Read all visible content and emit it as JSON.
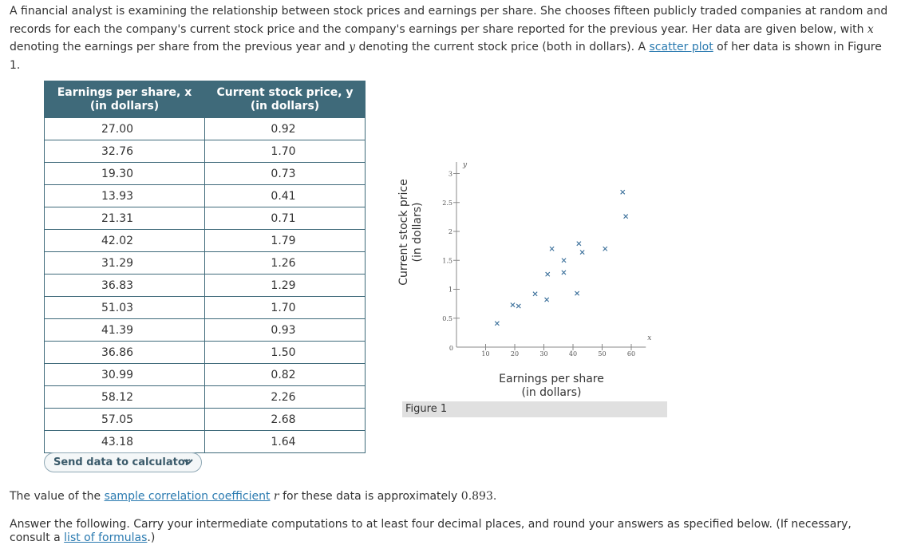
{
  "intro": {
    "part1": "A financial analyst is examining the relationship between stock prices and earnings per share. She chooses fifteen publicly traded companies at random and records for each the company's current stock price and the company's earnings per share reported for the previous year. Her data are given below, with ",
    "var_x": "x",
    "part2": " denoting the earnings per share from the previous year and ",
    "var_y": "y",
    "part3": " denoting the current stock price (both in dollars). A ",
    "link_scatter": "scatter plot",
    "part4": " of her data is shown in Figure 1."
  },
  "table": {
    "header_x_line1": "Earnings per share, x",
    "header_x_line2": "(in dollars)",
    "header_y_line1": "Current stock price, y",
    "header_y_line2": "(in dollars)",
    "rows": [
      [
        "27.00",
        "0.92"
      ],
      [
        "32.76",
        "1.70"
      ],
      [
        "19.30",
        "0.73"
      ],
      [
        "13.93",
        "0.41"
      ],
      [
        "21.31",
        "0.71"
      ],
      [
        "42.02",
        "1.79"
      ],
      [
        "31.29",
        "1.26"
      ],
      [
        "36.83",
        "1.29"
      ],
      [
        "51.03",
        "1.70"
      ],
      [
        "41.39",
        "0.93"
      ],
      [
        "36.86",
        "1.50"
      ],
      [
        "30.99",
        "0.82"
      ],
      [
        "58.12",
        "2.26"
      ],
      [
        "57.05",
        "2.68"
      ],
      [
        "43.18",
        "1.64"
      ]
    ]
  },
  "send_button": {
    "label": "Send data to calculator",
    "icon": "chevron-down-icon"
  },
  "figure": {
    "caption": "Figure 1",
    "ylabel_line1": "Current stock price",
    "ylabel_line2": "(in dollars)",
    "xlabel_line1": "Earnings per share",
    "xlabel_line2": "(in dollars)"
  },
  "chart_data": {
    "type": "scatter",
    "title": "",
    "xlabel": "Earnings per share (in dollars)",
    "ylabel": "Current stock price (in dollars)",
    "x_axis_symbol": "x",
    "y_axis_symbol": "y",
    "xlim": [
      0,
      65
    ],
    "ylim": [
      0,
      3.2
    ],
    "x_ticks": [
      10,
      20,
      30,
      40,
      50,
      60
    ],
    "x_tick_labels": [
      "10",
      "20",
      "30",
      "40",
      "50",
      "60"
    ],
    "y_ticks": [
      0.5,
      1,
      1.5,
      2,
      2.5,
      3
    ],
    "y_tick_labels": [
      "0.5",
      "1",
      "1.5",
      "2",
      "2.5",
      "3"
    ],
    "origin_label": "0",
    "marker": "x",
    "marker_color": "#3a6f9a",
    "grid": false,
    "points": [
      {
        "x": 27.0,
        "y": 0.92
      },
      {
        "x": 32.76,
        "y": 1.7
      },
      {
        "x": 19.3,
        "y": 0.73
      },
      {
        "x": 13.93,
        "y": 0.41
      },
      {
        "x": 21.31,
        "y": 0.71
      },
      {
        "x": 42.02,
        "y": 1.79
      },
      {
        "x": 31.29,
        "y": 1.26
      },
      {
        "x": 36.83,
        "y": 1.29
      },
      {
        "x": 51.03,
        "y": 1.7
      },
      {
        "x": 41.39,
        "y": 0.93
      },
      {
        "x": 36.86,
        "y": 1.5
      },
      {
        "x": 30.99,
        "y": 0.82
      },
      {
        "x": 58.12,
        "y": 2.26
      },
      {
        "x": 57.05,
        "y": 2.68
      },
      {
        "x": 43.18,
        "y": 1.64
      }
    ]
  },
  "after": {
    "p1_pre": "The value of the ",
    "p1_link": "sample correlation coefficient",
    "p1_var": "r",
    "p1_post": " for these data is approximately ",
    "p1_value": "0.893",
    "p1_end": ".",
    "p2_pre": "Answer the following. Carry your intermediate computations to at least four decimal places, and round your answers as specified below. (If necessary, consult a ",
    "p2_link": "list of formulas",
    "p2_end": ".)"
  }
}
